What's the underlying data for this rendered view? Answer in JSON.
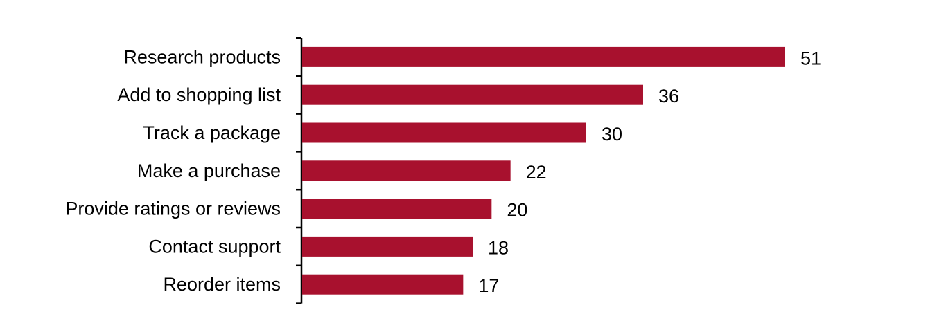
{
  "chart_data": {
    "type": "bar",
    "orientation": "horizontal",
    "categories": [
      "Research products",
      "Add to shopping list",
      "Track a package",
      "Make a purchase",
      "Provide ratings or reviews",
      "Contact support",
      "Reorder items"
    ],
    "values": [
      51,
      36,
      30,
      22,
      20,
      18,
      17
    ],
    "title": "",
    "xlabel": "",
    "ylabel": "",
    "xlim": [
      0,
      51
    ],
    "grid": false,
    "legend": "none",
    "data_labels": [
      "51",
      "36",
      "30",
      "22",
      "20",
      "18",
      "17"
    ],
    "bar_color": "#A8112E"
  }
}
